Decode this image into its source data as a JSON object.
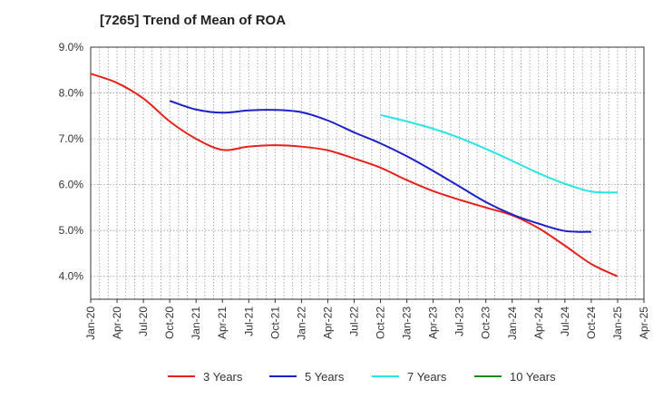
{
  "chart_data": {
    "type": "line",
    "title": "[7265]  Trend of Mean of ROA",
    "xlabel": "",
    "ylabel": "",
    "ylim": [
      3.5,
      9.0
    ],
    "yticks": [
      4.0,
      5.0,
      6.0,
      7.0,
      8.0,
      9.0
    ],
    "ytick_labels": [
      "4.0%",
      "5.0%",
      "6.0%",
      "7.0%",
      "8.0%",
      "9.0%"
    ],
    "x_start_month_index": 0,
    "x_end_month_index": 63,
    "xtick_labels": [
      "Jan-20",
      "Apr-20",
      "Jul-20",
      "Oct-20",
      "Jan-21",
      "Apr-21",
      "Jul-21",
      "Oct-21",
      "Jan-22",
      "Apr-22",
      "Jul-22",
      "Oct-22",
      "Jan-23",
      "Apr-23",
      "Jul-23",
      "Oct-23",
      "Jan-24",
      "Apr-24",
      "Jul-24",
      "Oct-24",
      "Jan-25",
      "Apr-25"
    ],
    "grid": true,
    "legend_position": "bottom",
    "series": [
      {
        "name": "3 Years",
        "color": "#e8201c",
        "points": [
          [
            0,
            8.42
          ],
          [
            3,
            8.22
          ],
          [
            6,
            7.88
          ],
          [
            9,
            7.38
          ],
          [
            12,
            7.0
          ],
          [
            15,
            6.76
          ],
          [
            18,
            6.83
          ],
          [
            21,
            6.86
          ],
          [
            24,
            6.83
          ],
          [
            27,
            6.75
          ],
          [
            30,
            6.57
          ],
          [
            33,
            6.37
          ],
          [
            36,
            6.1
          ],
          [
            39,
            5.86
          ],
          [
            42,
            5.67
          ],
          [
            45,
            5.5
          ],
          [
            48,
            5.33
          ],
          [
            51,
            5.05
          ],
          [
            54,
            4.67
          ],
          [
            57,
            4.27
          ],
          [
            60,
            4.0
          ]
        ]
      },
      {
        "name": "5 Years",
        "color": "#1c20c8",
        "points": [
          [
            9,
            7.83
          ],
          [
            12,
            7.64
          ],
          [
            15,
            7.57
          ],
          [
            18,
            7.62
          ],
          [
            21,
            7.63
          ],
          [
            24,
            7.58
          ],
          [
            27,
            7.4
          ],
          [
            30,
            7.14
          ],
          [
            33,
            6.9
          ],
          [
            36,
            6.62
          ],
          [
            39,
            6.3
          ],
          [
            42,
            5.96
          ],
          [
            45,
            5.62
          ],
          [
            48,
            5.35
          ],
          [
            51,
            5.15
          ],
          [
            54,
            4.99
          ],
          [
            57,
            4.97
          ]
        ]
      },
      {
        "name": "7 Years",
        "color": "#25e5e5",
        "points": [
          [
            33,
            7.52
          ],
          [
            36,
            7.38
          ],
          [
            39,
            7.22
          ],
          [
            42,
            7.02
          ],
          [
            45,
            6.78
          ],
          [
            48,
            6.52
          ],
          [
            51,
            6.25
          ],
          [
            54,
            6.02
          ],
          [
            57,
            5.85
          ],
          [
            60,
            5.83
          ]
        ]
      },
      {
        "name": "10 Years",
        "color": "#1a8a1a",
        "points": []
      }
    ]
  }
}
